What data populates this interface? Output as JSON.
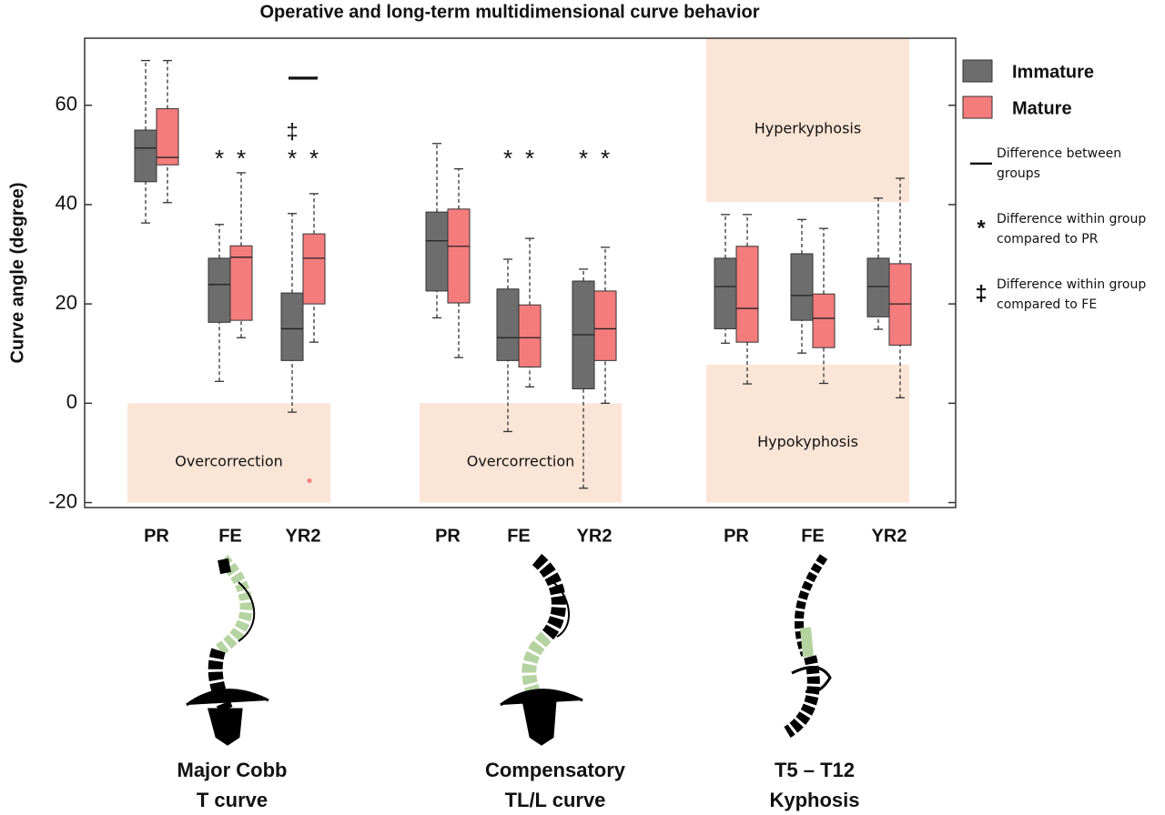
{
  "chart_data": {
    "type": "box",
    "title": "Operative and long-term multidimensional curve behavior",
    "ylabel": "Curve angle (degree)",
    "ylim": [
      -21,
      73.5
    ],
    "yticks": [
      -20,
      0,
      20,
      40,
      60
    ],
    "region_color": "#fbe5d6",
    "categories": [
      "PR",
      "FE",
      "YR2",
      "PR",
      "FE",
      "YR2",
      "PR",
      "FE",
      "YR2"
    ],
    "groups": [
      {
        "lines": [
          "Major Cobb",
          "T curve"
        ],
        "regions": [
          {
            "label": "Overcorrection",
            "ylim": [
              -20,
              0
            ]
          }
        ]
      },
      {
        "lines": [
          "Compensatory",
          "TL/L curve"
        ],
        "regions": [
          {
            "label": "Overcorrection",
            "ylim": [
              -20,
              0
            ]
          }
        ]
      },
      {
        "lines": [
          "T5 – T12",
          "Kyphosis"
        ],
        "regions": [
          {
            "label": "Hyperkyphosis",
            "ylim": [
              40.5,
              73.5
            ]
          },
          {
            "label": "Hypokyphosis",
            "ylim": [
              -20,
              7.8
            ]
          }
        ]
      }
    ],
    "series": [
      {
        "name": "Immature",
        "color": "#6d6d6d",
        "values": [
          {
            "low": 36.3,
            "q1": 44.6,
            "median": 51.4,
            "q3": 55,
            "high": 69
          },
          {
            "low": 4.4,
            "q1": 16.3,
            "median": 23.9,
            "q3": 29.2,
            "high": 36
          },
          {
            "low": -1.8,
            "q1": 8.6,
            "median": 15,
            "q3": 22.2,
            "high": 38.2
          },
          {
            "low": 17.2,
            "q1": 22.6,
            "median": 32.7,
            "q3": 38.5,
            "high": 52.3
          },
          {
            "low": -5.7,
            "q1": 8.6,
            "median": 13.2,
            "q3": 23,
            "high": 29
          },
          {
            "low": -17.1,
            "q1": 2.9,
            "median": 13.8,
            "q3": 24.6,
            "high": 27
          },
          {
            "low": 12.1,
            "q1": 15,
            "median": 23.5,
            "q3": 29.2,
            "high": 38
          },
          {
            "low": 10.1,
            "q1": 16.7,
            "median": 21.7,
            "q3": 30.1,
            "high": 37
          },
          {
            "low": 14.9,
            "q1": 17.4,
            "median": 23.5,
            "q3": 29.2,
            "high": 41.3
          }
        ],
        "outliers": [
          [],
          [],
          [],
          [],
          [],
          [],
          [],
          [],
          []
        ],
        "vs_pr": [
          null,
          "*",
          "*",
          null,
          "*",
          "*",
          null,
          null,
          null
        ],
        "vs_fe": [
          null,
          null,
          "‡",
          null,
          null,
          null,
          null,
          null,
          null
        ]
      },
      {
        "name": "Mature",
        "color": "#f57c7c",
        "values": [
          {
            "low": 40.4,
            "q1": 48,
            "median": 49.5,
            "q3": 59.3,
            "high": 69
          },
          {
            "low": 13.2,
            "q1": 16.7,
            "median": 29.4,
            "q3": 31.7,
            "high": 46.4
          },
          {
            "low": 12.3,
            "q1": 20,
            "median": 29.2,
            "q3": 34.1,
            "high": 42.2
          },
          {
            "low": 9.2,
            "q1": 20.2,
            "median": 31.6,
            "q3": 39.1,
            "high": 47.2
          },
          {
            "low": 3.3,
            "q1": 7.3,
            "median": 13.2,
            "q3": 19.8,
            "high": 33.2
          },
          {
            "low": 0,
            "q1": 8.6,
            "median": 15,
            "q3": 22.6,
            "high": 31.4
          },
          {
            "low": 3.9,
            "q1": 12.3,
            "median": 19.1,
            "q3": 31.6,
            "high": 38
          },
          {
            "low": 4,
            "q1": 11.2,
            "median": 17.1,
            "q3": 22,
            "high": 35.2
          },
          {
            "low": 1.1,
            "q1": 11.7,
            "median": 20,
            "q3": 28.1,
            "high": 45.3
          }
        ],
        "outliers": [
          [],
          [],
          [
            -15.6
          ],
          [],
          [],
          [],
          [],
          [],
          []
        ],
        "vs_pr": [
          null,
          "*",
          "*",
          null,
          "*",
          "*",
          null,
          null,
          null
        ]
      }
    ],
    "between": [
      null,
      null,
      "—",
      null,
      null,
      null,
      null,
      null,
      null
    ],
    "key": [
      {
        "symbol": "—",
        "text": "Difference between groups"
      },
      {
        "symbol": "*",
        "text": "Difference within group compared to PR"
      },
      {
        "symbol": "‡",
        "text": "Difference within group compared to FE"
      }
    ]
  }
}
